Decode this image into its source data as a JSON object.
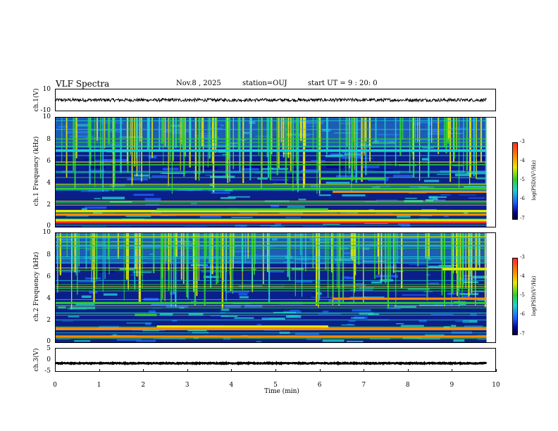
{
  "header": {
    "title": "VLF Spectra",
    "date": "Nov.8 , 2025",
    "station": "station=OUJ",
    "start": "start UT = 9 : 20: 0"
  },
  "colors": {
    "background_low": "#0b1f8a",
    "line": "#000000"
  },
  "chart_data": [
    {
      "type": "line",
      "panel": "ch1-waveform",
      "ylabel": "ch.1(V)",
      "ylim": [
        -10,
        10
      ],
      "yticks": [
        "10",
        "-10"
      ],
      "xlim": [
        0,
        10
      ],
      "series": [
        {
          "name": "ch.1 waveform",
          "baseline": 0,
          "amplitude": 1.5
        }
      ]
    },
    {
      "type": "heatmap",
      "panel": "ch1-spectrogram",
      "ylabel": "ch.1 Frequency (kHz)",
      "ylim": [
        0,
        10
      ],
      "yticks": [
        "0",
        "2",
        "4",
        "6",
        "8",
        "10"
      ],
      "xlim": [
        0,
        10
      ],
      "colorbar": {
        "label": "log(PSD)(V²/Hz)",
        "ticks": [
          "-3",
          "-4",
          "-5",
          "-6",
          "-7"
        ],
        "range": [
          -7,
          -3
        ]
      },
      "bands_khz": [
        {
          "f": 0.4,
          "level": -3.3,
          "t0": 0,
          "t1": 9.8
        },
        {
          "f": 0.6,
          "level": -4.2,
          "t0": 0,
          "t1": 9.8
        },
        {
          "f": 1.1,
          "level": -4.0,
          "t0": 0,
          "t1": 9.8
        },
        {
          "f": 1.45,
          "level": -4.5,
          "t0": 0,
          "t1": 9.8
        },
        {
          "f": 1.6,
          "level": -4.8,
          "t0": 2.3,
          "t1": 6.2
        },
        {
          "f": 3.2,
          "level": -4.0,
          "t0": 6.3,
          "t1": 9.8
        },
        {
          "f": 3.5,
          "level": -5.0,
          "t0": 0,
          "t1": 9.8
        },
        {
          "f": 4.4,
          "level": -5.1,
          "t0": 6.0,
          "t1": 7.5
        },
        {
          "f": 7.0,
          "level": -5.5,
          "t0": 0,
          "t1": 9.8
        }
      ]
    },
    {
      "type": "heatmap",
      "panel": "ch2-spectrogram",
      "ylabel": "ch.2 Frequency (kHz)",
      "ylim": [
        0,
        10
      ],
      "yticks": [
        "0",
        "2",
        "4",
        "6",
        "8",
        "10"
      ],
      "xlim": [
        0,
        10
      ],
      "colorbar": {
        "label": "log(PSD)(V²/Hz)",
        "ticks": [
          "-3",
          "-4",
          "-5",
          "-6",
          "-7"
        ],
        "range": [
          -7,
          -3
        ]
      },
      "bands_khz": [
        {
          "f": 0.5,
          "level": -4.0,
          "t0": 0,
          "t1": 9.8
        },
        {
          "f": 1.2,
          "level": -4.1,
          "t0": 0,
          "t1": 9.8
        },
        {
          "f": 1.45,
          "level": -4.5,
          "t0": 2.3,
          "t1": 6.2
        },
        {
          "f": 2.5,
          "level": -5.0,
          "t0": 1.8,
          "t1": 2.3
        },
        {
          "f": 3.6,
          "level": -4.8,
          "t0": 0,
          "t1": 9.8
        },
        {
          "f": 4.0,
          "level": -4.0,
          "t0": 6.3,
          "t1": 9.8
        },
        {
          "f": 6.7,
          "level": -4.2,
          "t0": 8.8,
          "t1": 9.8
        }
      ]
    },
    {
      "type": "line",
      "panel": "ch3-waveform",
      "ylabel": "ch.3(V)",
      "ylim": [
        -5,
        5
      ],
      "yticks": [
        "5",
        "0",
        "-5"
      ],
      "xlim": [
        0,
        10
      ],
      "series": [
        {
          "name": "ch.3 waveform",
          "baseline": -1.5,
          "amplitude": 0.2
        }
      ]
    }
  ],
  "xaxis": {
    "label": "Time (min)",
    "ticks": [
      "0",
      "1",
      "2",
      "3",
      "4",
      "5",
      "6",
      "7",
      "8",
      "9",
      "10"
    ],
    "range": [
      0,
      10
    ]
  }
}
